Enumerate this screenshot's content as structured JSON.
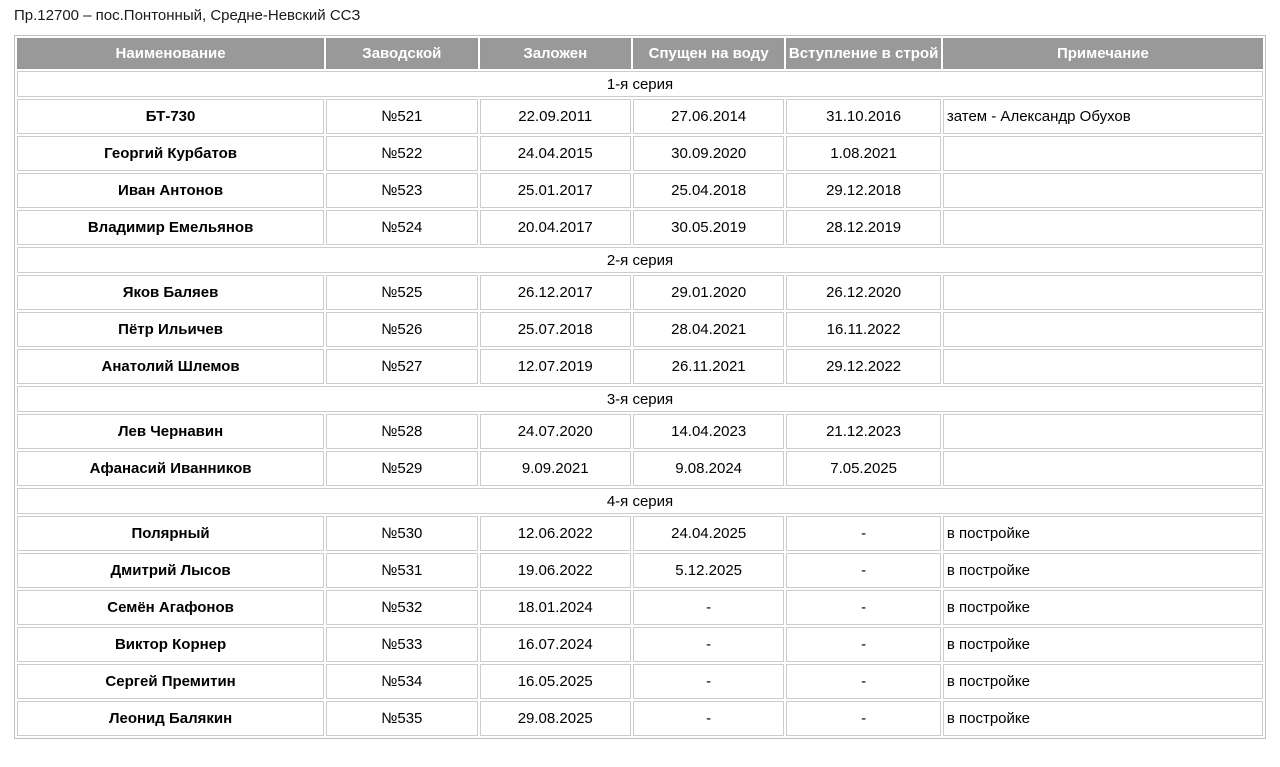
{
  "page": {
    "title": "Пр.12700 – пос.Понтонный, Средне-Невский ССЗ"
  },
  "colors": {
    "header_bg": "#999999",
    "header_text": "#ffffff",
    "cell_border": "#cccccc",
    "outer_border": "#c0c0c0",
    "body_text": "#000000"
  },
  "table": {
    "headers": [
      "Наименование",
      "Заводской",
      "Заложен",
      "Спущен на воду",
      "Вступление в строй",
      "Примечание"
    ],
    "sections": [
      {
        "label": "1-я серия",
        "rows": [
          {
            "name": "БТ-730",
            "factory_no": "№521",
            "laid_down": "22.09.2011",
            "launched": "27.06.2014",
            "commissioned": "31.10.2016",
            "note": "затем - Александр Обухов"
          },
          {
            "name": "Георгий Курбатов",
            "factory_no": "№522",
            "laid_down": "24.04.2015",
            "launched": "30.09.2020",
            "commissioned": "1.08.2021",
            "note": ""
          },
          {
            "name": "Иван Антонов",
            "factory_no": "№523",
            "laid_down": "25.01.2017",
            "launched": "25.04.2018",
            "commissioned": "29.12.2018",
            "note": ""
          },
          {
            "name": "Владимир Емельянов",
            "factory_no": "№524",
            "laid_down": "20.04.2017",
            "launched": "30.05.2019",
            "commissioned": "28.12.2019",
            "note": ""
          }
        ]
      },
      {
        "label": "2-я серия",
        "rows": [
          {
            "name": "Яков Баляев",
            "factory_no": "№525",
            "laid_down": "26.12.2017",
            "launched": "29.01.2020",
            "commissioned": "26.12.2020",
            "note": ""
          },
          {
            "name": "Пётр Ильичев",
            "factory_no": "№526",
            "laid_down": "25.07.2018",
            "launched": "28.04.2021",
            "commissioned": "16.11.2022",
            "note": ""
          },
          {
            "name": "Анатолий Шлемов",
            "factory_no": "№527",
            "laid_down": "12.07.2019",
            "launched": "26.11.2021",
            "commissioned": "29.12.2022",
            "note": ""
          }
        ]
      },
      {
        "label": "3-я серия",
        "rows": [
          {
            "name": "Лев Чернавин",
            "factory_no": "№528",
            "laid_down": "24.07.2020",
            "launched": "14.04.2023",
            "commissioned": "21.12.2023",
            "note": ""
          },
          {
            "name": "Афанасий Иванников",
            "factory_no": "№529",
            "laid_down": "9.09.2021",
            "launched": "9.08.2024",
            "commissioned": "7.05.2025",
            "note": ""
          }
        ]
      },
      {
        "label": "4-я серия",
        "rows": [
          {
            "name": "Полярный",
            "factory_no": "№530",
            "laid_down": "12.06.2022",
            "launched": "24.04.2025",
            "commissioned": "-",
            "note": "в постройке"
          },
          {
            "name": "Дмитрий Лысов",
            "factory_no": "№531",
            "laid_down": "19.06.2022",
            "launched": "5.12.2025",
            "commissioned": "-",
            "note": "в постройке"
          },
          {
            "name": "Семён Агафонов",
            "factory_no": "№532",
            "laid_down": "18.01.2024",
            "launched": "-",
            "commissioned": "-",
            "note": "в постройке"
          },
          {
            "name": "Виктор Корнер",
            "factory_no": "№533",
            "laid_down": "16.07.2024",
            "launched": "-",
            "commissioned": "-",
            "note": "в постройке"
          },
          {
            "name": "Сергей Премитин",
            "factory_no": "№534",
            "laid_down": "16.05.2025",
            "launched": "-",
            "commissioned": "-",
            "note": "в постройке"
          },
          {
            "name": "Леонид Балякин",
            "factory_no": "№535",
            "laid_down": "29.08.2025",
            "launched": "-",
            "commissioned": "-",
            "note": "в постройке"
          }
        ]
      }
    ]
  }
}
